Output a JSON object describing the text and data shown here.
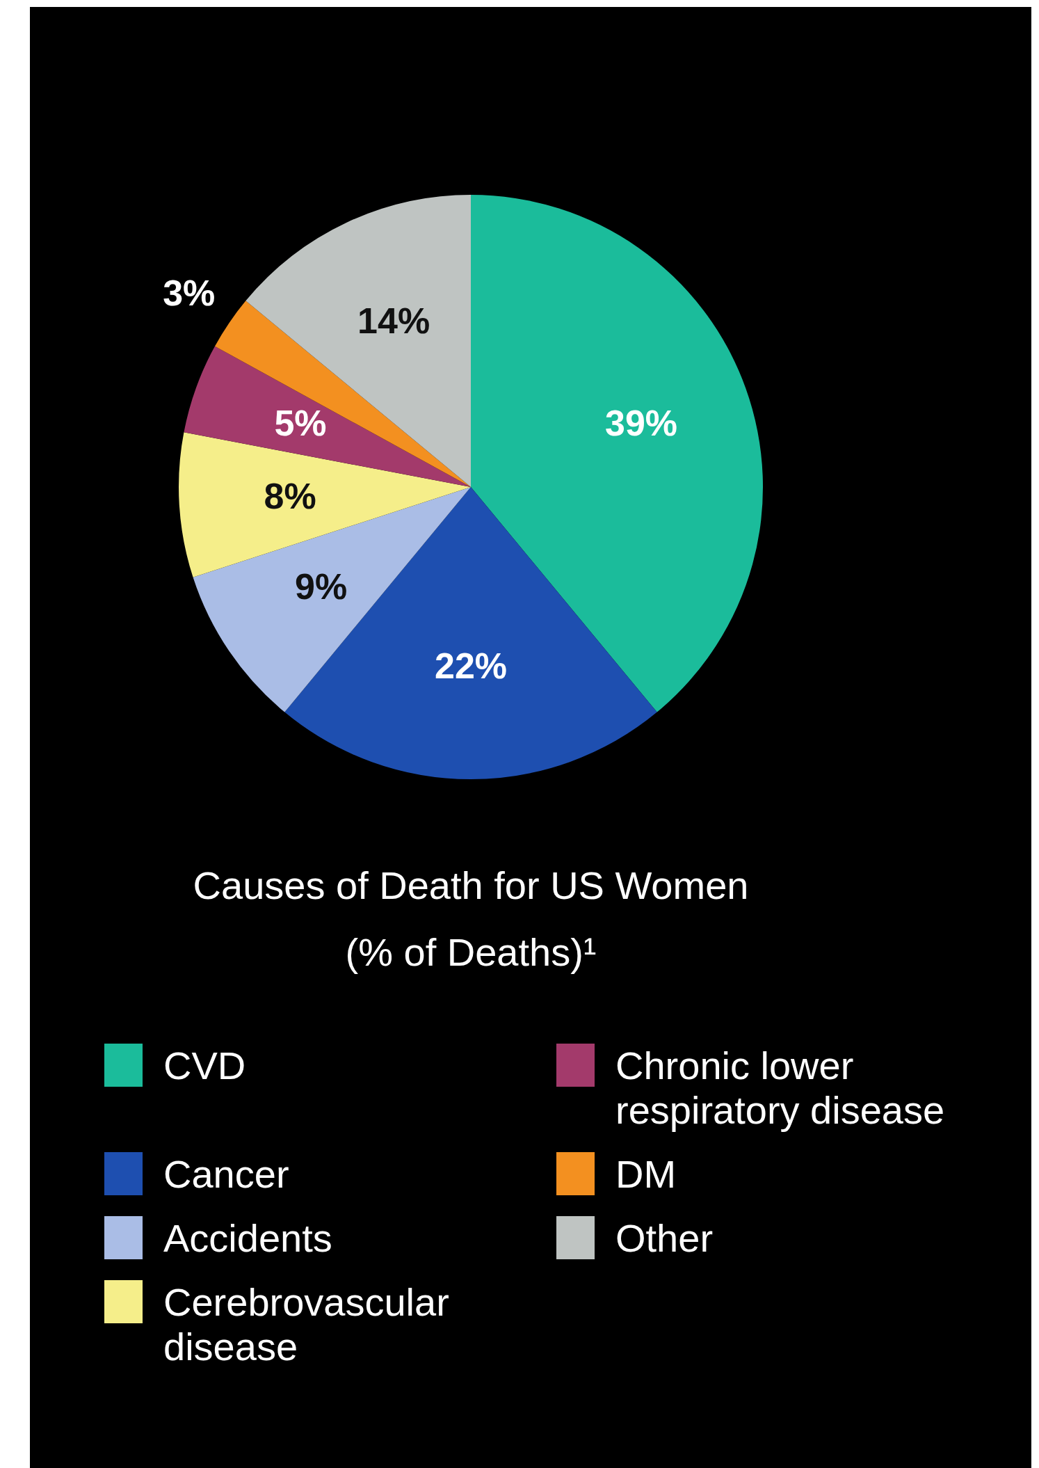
{
  "chart_data": {
    "type": "pie",
    "title": "Causes of Death for US Women",
    "subtitle": "(% of Deaths)¹",
    "categories": [
      "CVD",
      "Cancer",
      "Accidents",
      "Cerebrovascular disease",
      "Chronic lower respiratory disease",
      "DM",
      "Other"
    ],
    "values": [
      39,
      22,
      9,
      8,
      5,
      3,
      14
    ],
    "colors": [
      "#1bbc9b",
      "#1e4fb0",
      "#aabde6",
      "#f5ee8a",
      "#a33a6b",
      "#f39020",
      "#bfc4c2"
    ],
    "value_labels": [
      "39%",
      "22%",
      "9%",
      "8%",
      "5%",
      "3%",
      "14%"
    ],
    "legend": "bottom"
  }
}
